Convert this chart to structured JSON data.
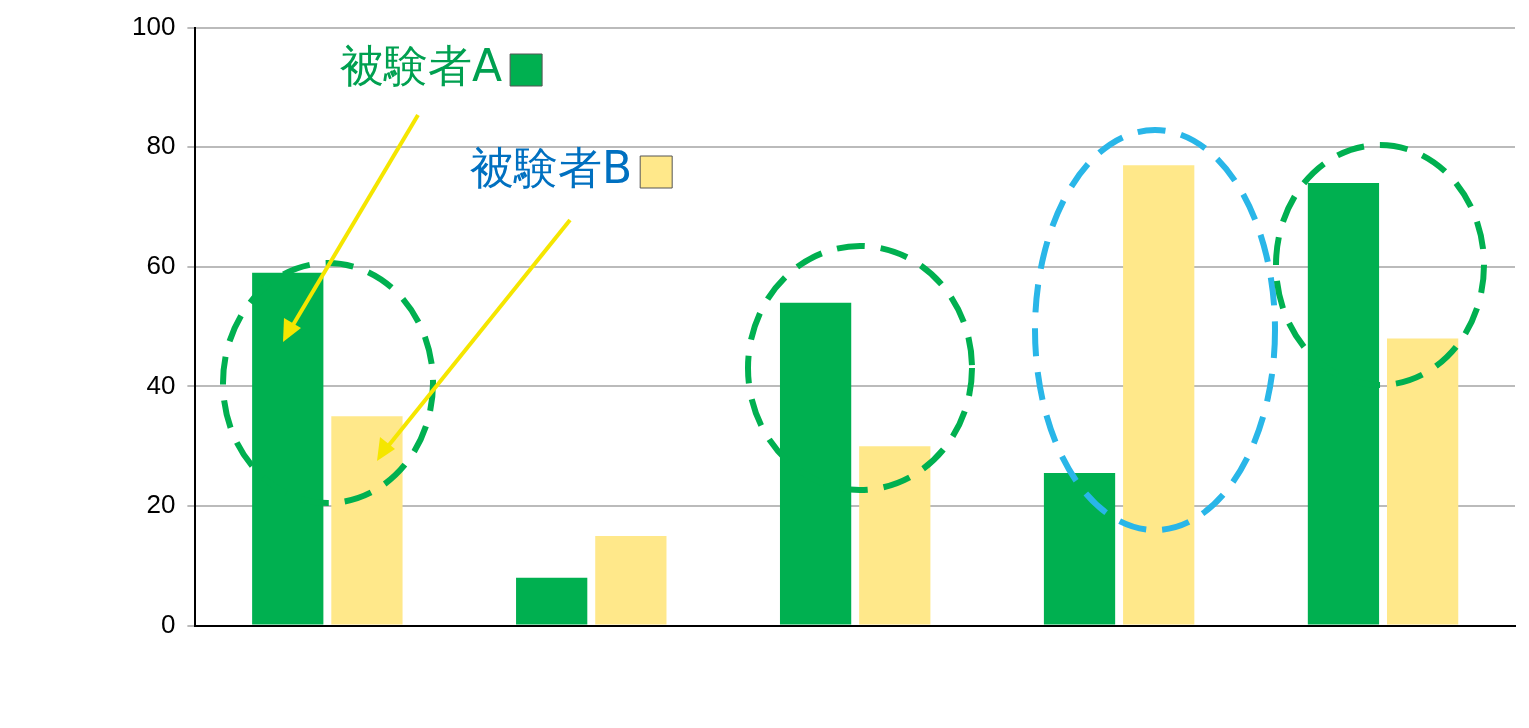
{
  "chart_data": {
    "type": "bar",
    "categories": [
      null,
      null,
      null,
      null,
      null
    ],
    "series": [
      {
        "name": "被験者A",
        "color": "#00b050",
        "values": [
          59,
          8,
          54,
          25.5,
          74
        ]
      },
      {
        "name": "被験者B",
        "color": "#ffe88a",
        "values": [
          35,
          15,
          30,
          77,
          48
        ]
      }
    ],
    "ylim": [
      0,
      100
    ],
    "yticks": [
      0,
      20,
      40,
      60,
      80,
      100
    ],
    "grid": "y",
    "legend": "top left"
  }
}
